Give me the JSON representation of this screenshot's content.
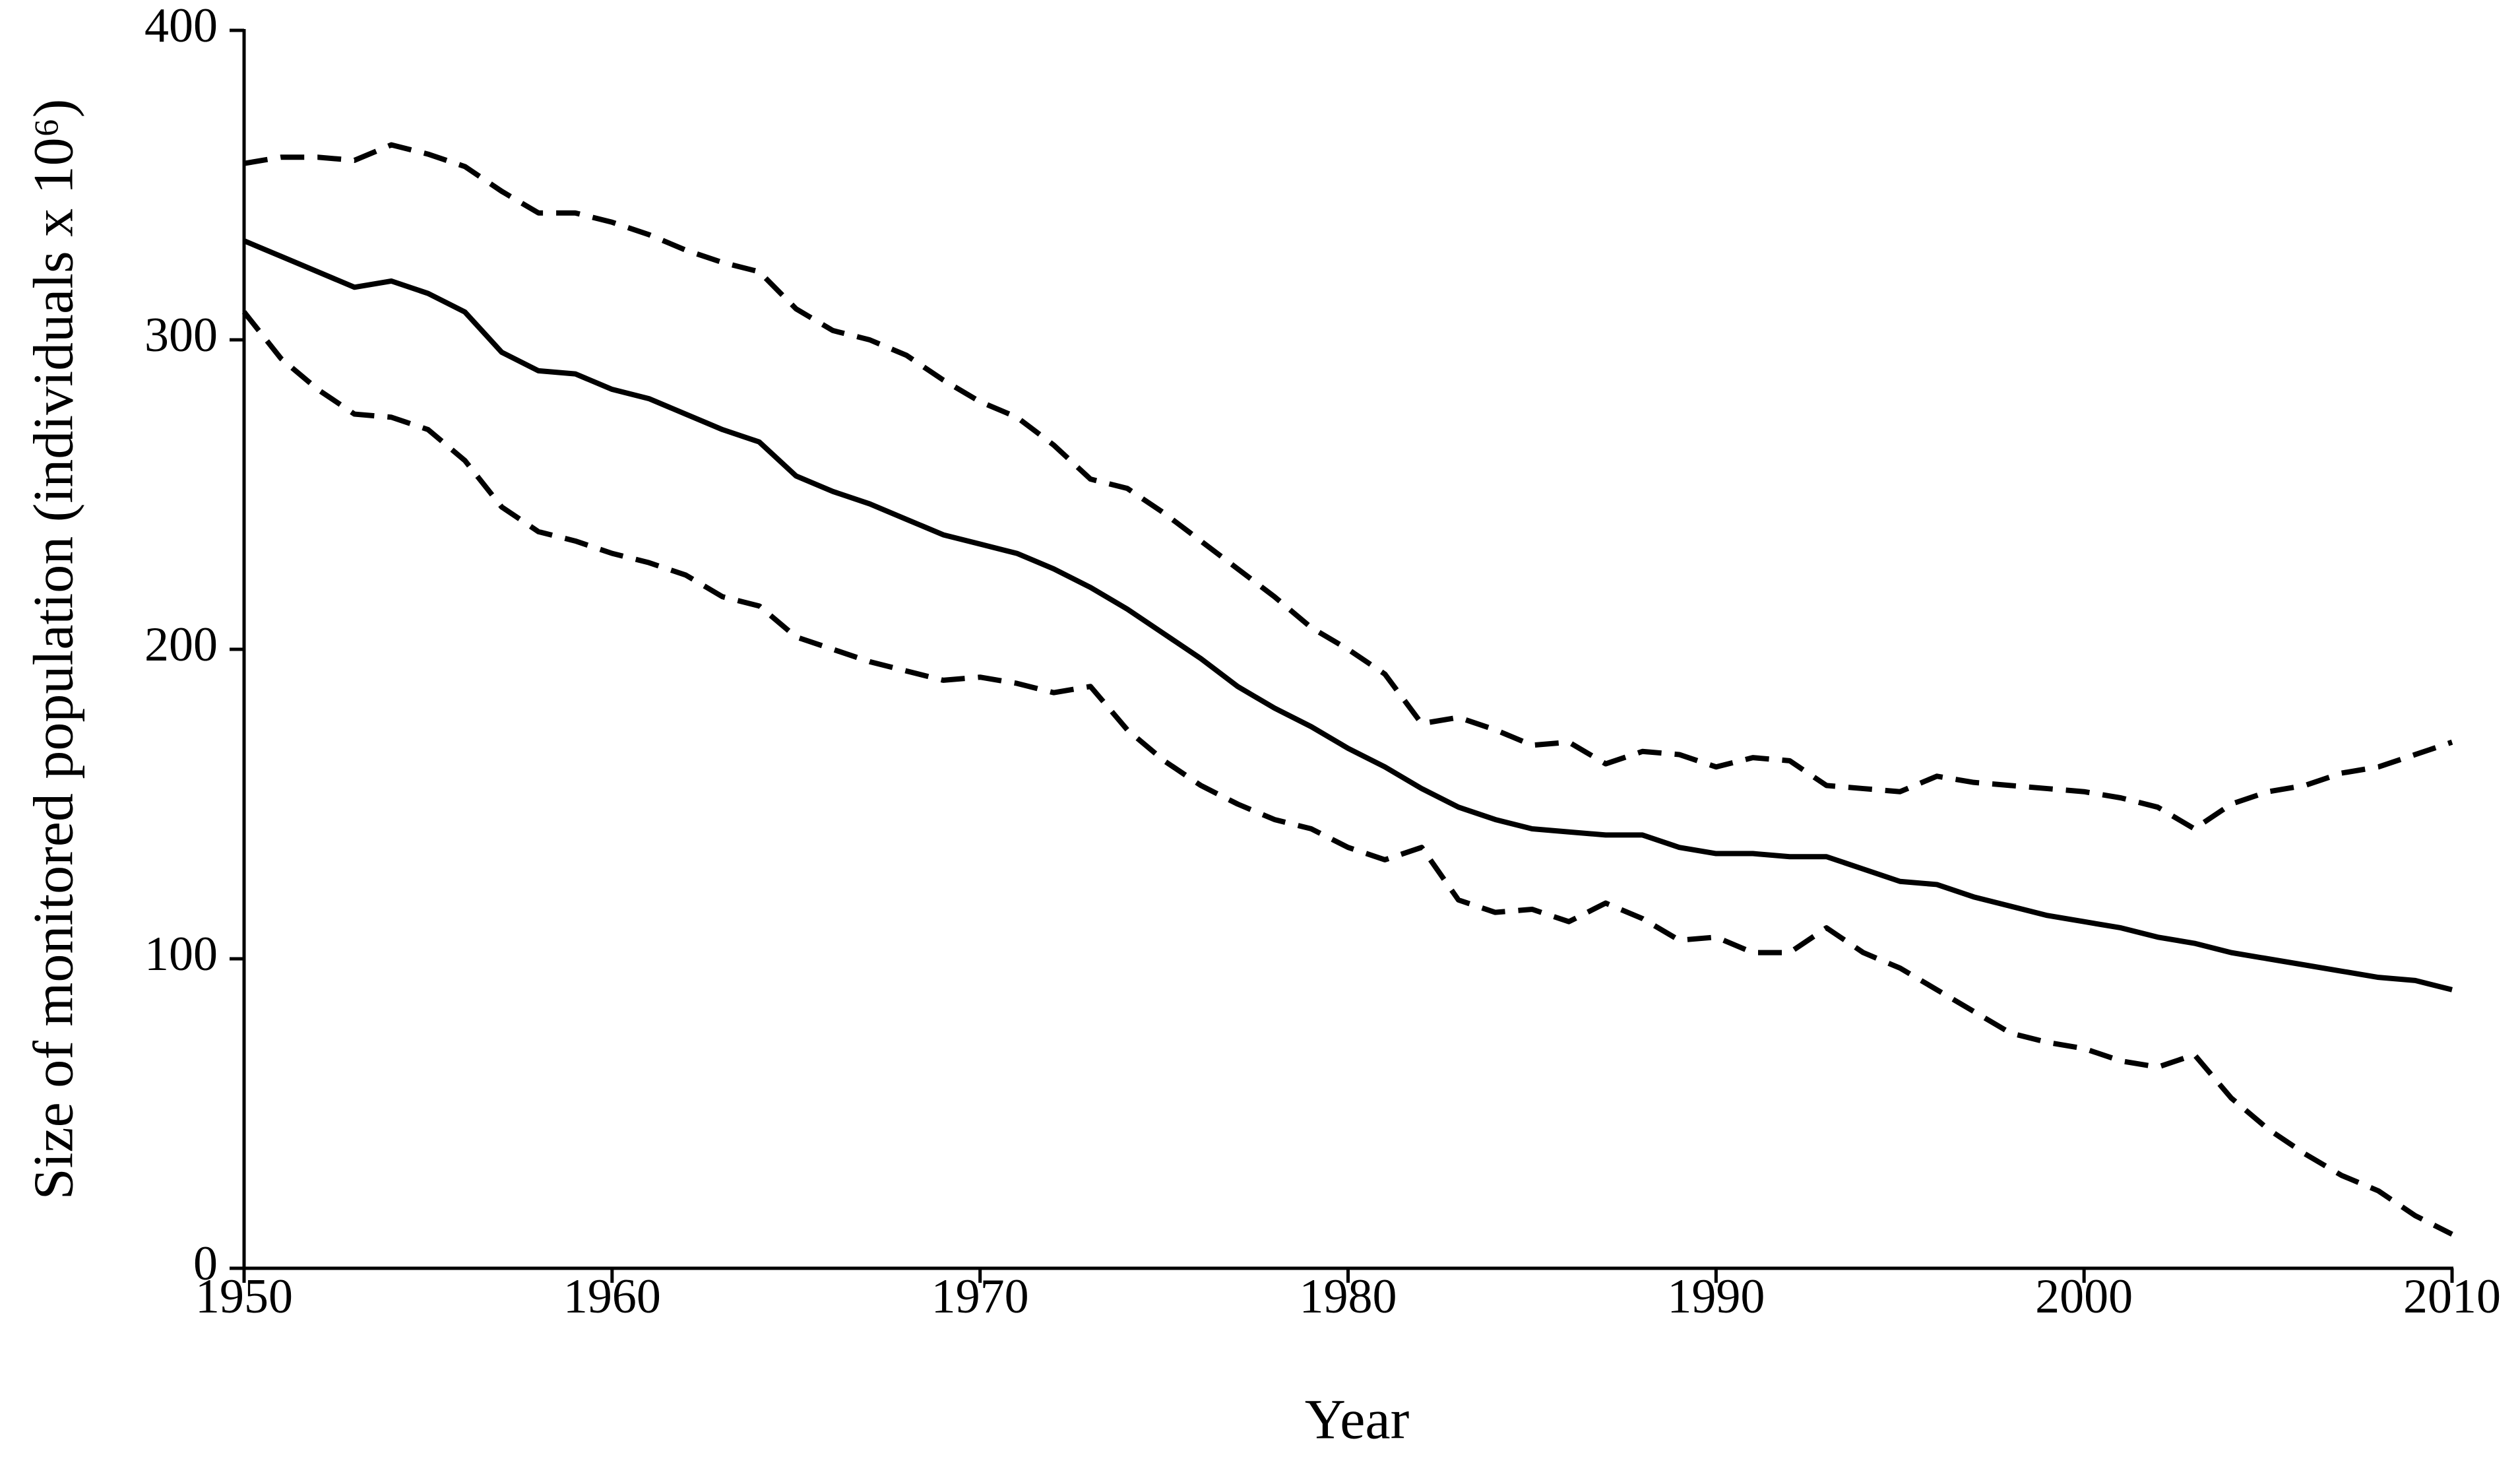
{
  "chart_data": {
    "type": "line",
    "x_label": "Year",
    "y_label": "Size of monitored population (individuals x 10⁶)",
    "x": [
      1950,
      1951,
      1952,
      1953,
      1954,
      1955,
      1956,
      1957,
      1958,
      1959,
      1960,
      1961,
      1962,
      1963,
      1964,
      1965,
      1966,
      1967,
      1968,
      1969,
      1970,
      1971,
      1972,
      1973,
      1974,
      1975,
      1976,
      1977,
      1978,
      1979,
      1980,
      1981,
      1982,
      1983,
      1984,
      1985,
      1986,
      1987,
      1988,
      1989,
      1990,
      1991,
      1992,
      1993,
      1994,
      1995,
      1996,
      1997,
      1998,
      1999,
      2000,
      2001,
      2002,
      2003,
      2004,
      2005,
      2006,
      2007,
      2008,
      2009,
      2010
    ],
    "series": [
      {
        "color": "#000000",
        "style": "solid",
        "values": [
          332,
          327,
          322,
          317,
          319,
          315,
          309,
          296,
          290,
          289,
          284,
          281,
          276,
          271,
          267,
          256,
          251,
          247,
          242,
          237,
          234,
          231,
          226,
          220,
          213,
          205,
          197,
          188,
          181,
          175,
          168,
          162,
          155,
          149,
          145,
          142,
          141,
          140,
          140,
          136,
          134,
          134,
          133,
          133,
          129,
          125,
          124,
          120,
          117,
          114,
          112,
          110,
          107,
          105,
          102,
          100,
          98,
          96,
          94,
          93,
          90
        ]
      },
      {
        "color": "#000000",
        "style": "dashed",
        "values": [
          357,
          359,
          359,
          358,
          363,
          360,
          356,
          348,
          341,
          341,
          338,
          334,
          329,
          325,
          322,
          310,
          303,
          300,
          295,
          287,
          280,
          275,
          266,
          255,
          252,
          244,
          235,
          226,
          217,
          207,
          200,
          192,
          176,
          178,
          174,
          169,
          170,
          163,
          167,
          166,
          162,
          165,
          164,
          156,
          155,
          154,
          159,
          157,
          156,
          155,
          154,
          152,
          149,
          142,
          150,
          154,
          156,
          160,
          162,
          166,
          170
        ]
      },
      {
        "color": "#000000",
        "style": "dashed",
        "values": [
          309,
          294,
          284,
          276,
          275,
          271,
          261,
          246,
          238,
          235,
          231,
          228,
          224,
          217,
          214,
          204,
          200,
          196,
          193,
          190,
          191,
          189,
          186,
          188,
          174,
          164,
          156,
          150,
          145,
          142,
          136,
          132,
          136,
          119,
          115,
          116,
          112,
          118,
          113,
          106,
          107,
          102,
          102,
          110,
          102,
          97,
          90,
          83,
          76,
          73,
          71,
          67,
          65,
          69,
          55,
          45,
          37,
          30,
          25,
          17,
          11
        ]
      }
    ],
    "xlim": [
      1950,
      2010
    ],
    "xticks": [
      1950,
      1960,
      1970,
      1980,
      1990,
      2000,
      2010
    ],
    "ylim": [
      0,
      400
    ],
    "yticks": [
      0,
      100,
      200,
      300,
      400
    ],
    "grid": false
  }
}
